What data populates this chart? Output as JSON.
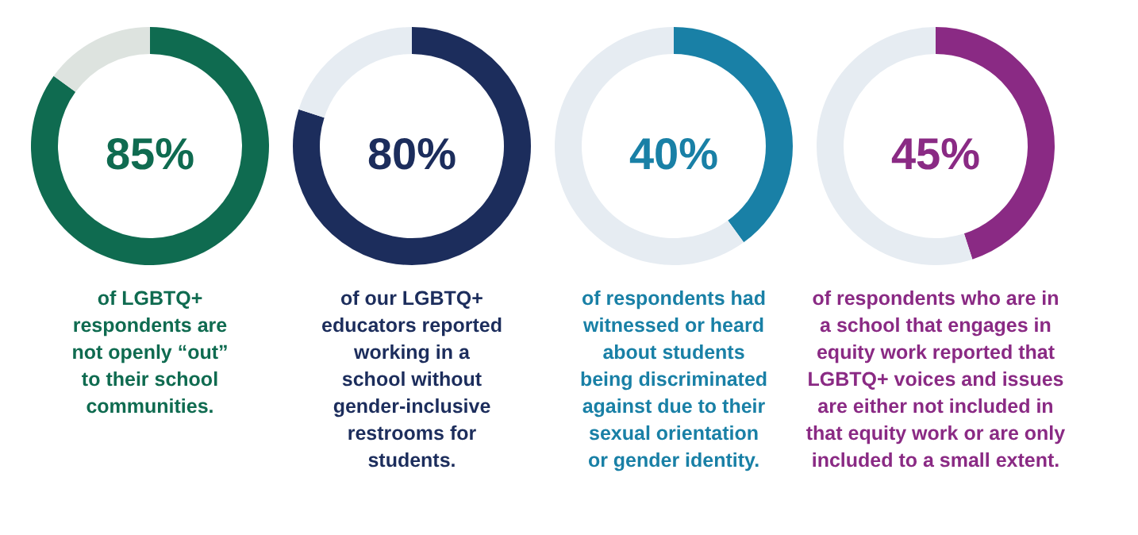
{
  "chart_data": [
    {
      "type": "donut",
      "title": "85%",
      "categories": [
        null,
        null
      ],
      "values": [
        85,
        15
      ],
      "colors": [
        "#0f6b50",
        "#dde3df"
      ],
      "annotations": [
        "of LGBTQ+\nrespondents are\nnot openly “out”\nto their school\ncommunities."
      ]
    },
    {
      "type": "donut",
      "title": "80%",
      "categories": [
        null,
        null
      ],
      "values": [
        80,
        20
      ],
      "colors": [
        "#1c2d5c",
        "#e6ecf2"
      ],
      "annotations": [
        "of our LGBTQ+\neducators reported\nworking in a\nschool without\ngender-inclusive\nrestrooms for\nstudents."
      ]
    },
    {
      "type": "donut",
      "title": "40%",
      "categories": [
        null,
        null
      ],
      "values": [
        40,
        60
      ],
      "colors": [
        "#1980a6",
        "#e6ecf2"
      ],
      "annotations": [
        "of respondents had\nwitnessed or heard\nabout students\nbeing discriminated\nagainst due to their\nsexual orientation\nor gender identity."
      ]
    },
    {
      "type": "donut",
      "title": "45%",
      "categories": [
        null,
        null
      ],
      "values": [
        45,
        55
      ],
      "colors": [
        "#8a2a84",
        "#e6ecf2"
      ],
      "annotations": [
        "of respondents who are in\na school that engages in\nequity work reported that\nLGBTQ+ voices and issues\nare either not included in\nthat equity work or are only\nincluded to a small extent."
      ]
    }
  ]
}
